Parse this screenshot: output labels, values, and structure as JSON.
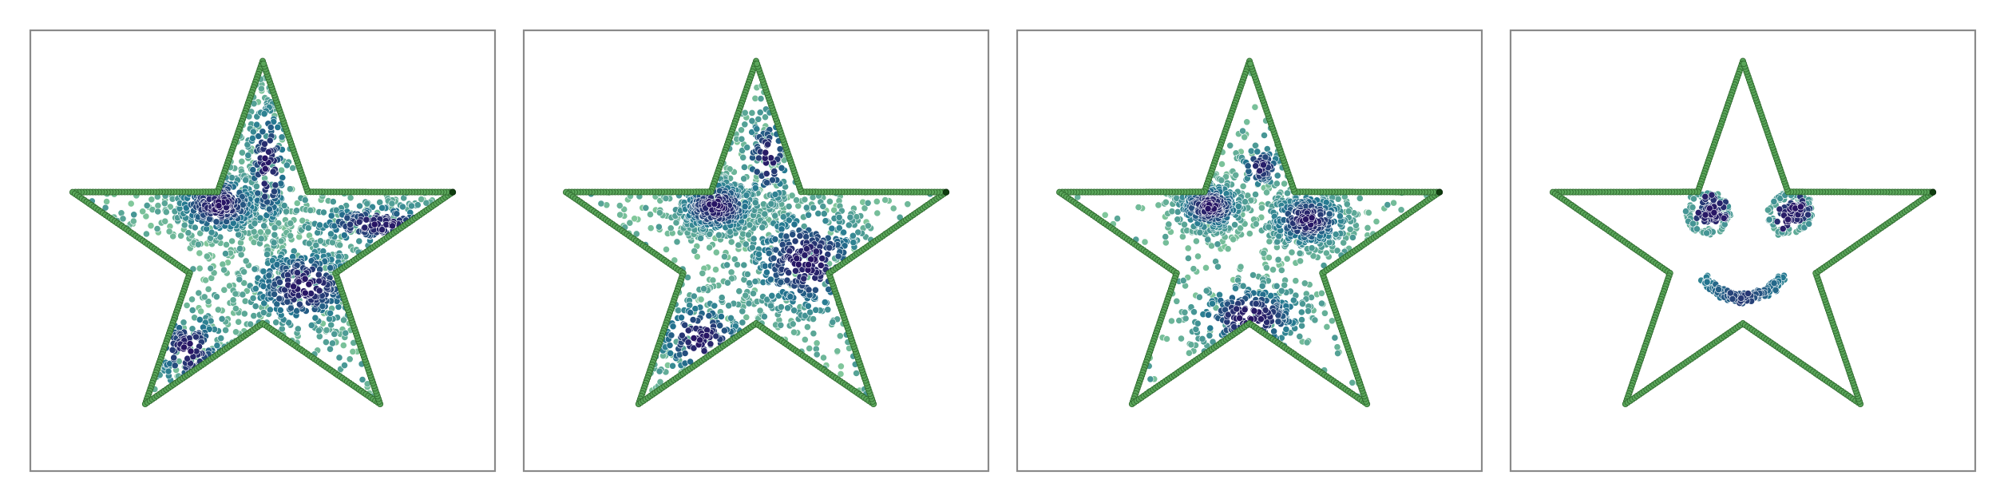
{
  "chart_data": [
    {
      "type": "scatter",
      "xlim": [
        -1.0,
        1.0
      ],
      "ylim": [
        -1.0,
        1.0
      ],
      "grid": false,
      "legend": "none",
      "colormap": "viridis-teal",
      "outline": {
        "shape": "star",
        "outer_radius": 0.86,
        "inner_radius": 0.33,
        "color": "#5aa55a",
        "edge_color": "#2f6b2f",
        "endpoint_color": "#0f3d0f"
      },
      "clusters": [
        {
          "kind": "blob",
          "center": [
            -0.19,
            0.21
          ],
          "spread": [
            0.12,
            0.09
          ],
          "n": 420
        },
        {
          "kind": "blob",
          "center": [
            0.18,
            -0.16
          ],
          "spread": [
            0.16,
            0.12
          ],
          "n": 380
        },
        {
          "kind": "blob",
          "center": [
            0.5,
            0.12
          ],
          "spread": [
            0.2,
            0.06
          ],
          "n": 260
        },
        {
          "kind": "blob",
          "center": [
            -0.32,
            -0.45
          ],
          "spread": [
            0.1,
            0.12
          ],
          "n": 200
        },
        {
          "kind": "blob",
          "center": [
            0.02,
            0.38
          ],
          "spread": [
            0.06,
            0.2
          ],
          "n": 180
        },
        {
          "kind": "uniform",
          "n": 420
        }
      ]
    },
    {
      "type": "scatter",
      "xlim": [
        -1.0,
        1.0
      ],
      "ylim": [
        -1.0,
        1.0
      ],
      "grid": false,
      "legend": "none",
      "colormap": "viridis-teal",
      "outline": {
        "shape": "star",
        "outer_radius": 0.86,
        "inner_radius": 0.33,
        "color": "#5aa55a",
        "edge_color": "#2f6b2f",
        "endpoint_color": "#0f3d0f"
      },
      "clusters": [
        {
          "kind": "blob",
          "center": [
            -0.17,
            0.2
          ],
          "spread": [
            0.11,
            0.08
          ],
          "n": 420
        },
        {
          "kind": "blob",
          "center": [
            0.22,
            -0.05
          ],
          "spread": [
            0.17,
            0.16
          ],
          "n": 460
        },
        {
          "kind": "blob",
          "center": [
            -0.24,
            -0.4
          ],
          "spread": [
            0.13,
            0.12
          ],
          "n": 220
        },
        {
          "kind": "blob",
          "center": [
            0.05,
            0.42
          ],
          "spread": [
            0.07,
            0.14
          ],
          "n": 120
        },
        {
          "kind": "uniform",
          "n": 320
        }
      ]
    },
    {
      "type": "scatter",
      "xlim": [
        -1.0,
        1.0
      ],
      "ylim": [
        -1.0,
        1.0
      ],
      "grid": false,
      "legend": "none",
      "colormap": "viridis-teal",
      "outline": {
        "shape": "star",
        "outer_radius": 0.86,
        "inner_radius": 0.33,
        "color": "#5aa55a",
        "edge_color": "#2f6b2f",
        "endpoint_color": "#0f3d0f"
      },
      "clusters": [
        {
          "kind": "blob",
          "center": [
            -0.17,
            0.2
          ],
          "spread": [
            0.09,
            0.07
          ],
          "n": 360
        },
        {
          "kind": "blob",
          "center": [
            0.25,
            0.14
          ],
          "spread": [
            0.11,
            0.08
          ],
          "n": 360
        },
        {
          "kind": "blob",
          "center": [
            0.0,
            -0.3
          ],
          "spread": [
            0.16,
            0.1
          ],
          "n": 320
        },
        {
          "kind": "blob",
          "center": [
            0.05,
            0.38
          ],
          "spread": [
            0.06,
            0.06
          ],
          "n": 80
        },
        {
          "kind": "uniform",
          "n": 160
        }
      ]
    },
    {
      "type": "scatter",
      "xlim": [
        -1.0,
        1.0
      ],
      "ylim": [
        -1.0,
        1.0
      ],
      "grid": false,
      "legend": "none",
      "colormap": "viridis-teal",
      "outline": {
        "shape": "star",
        "outer_radius": 0.86,
        "inner_radius": 0.33,
        "color": "#5aa55a",
        "edge_color": "#2f6b2f",
        "endpoint_color": "#0f3d0f"
      },
      "clusters": [
        {
          "kind": "eye",
          "center": [
            -0.15,
            0.17
          ],
          "ring_radius": 0.085,
          "n_ring": 90,
          "n_core": 90
        },
        {
          "kind": "eye",
          "center": [
            0.2,
            0.17
          ],
          "ring_radius": 0.085,
          "n_ring": 90,
          "n_core": 90
        },
        {
          "kind": "smile",
          "center": [
            0.0,
            -0.17
          ],
          "half_width": 0.17,
          "depth": 0.09,
          "n": 170
        }
      ]
    }
  ]
}
